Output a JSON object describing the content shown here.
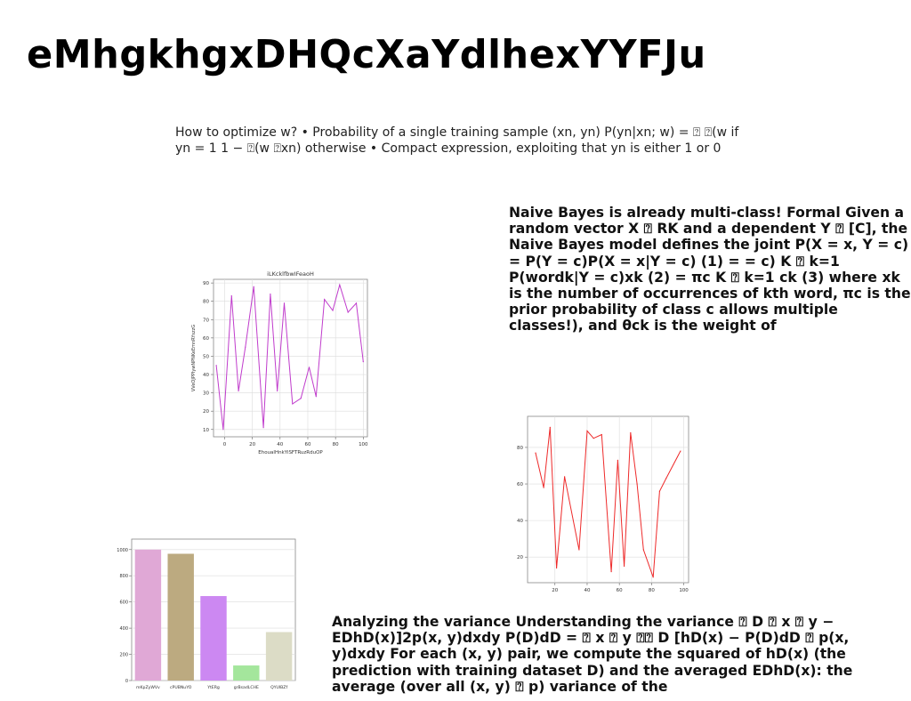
{
  "title": "eMhgkhgxDHQcXaYdlhexYYFJu",
  "para1": "How to optimize w? • Probability of a single training sample (xn, yn) P(yn|xn; w) = ⍰ ⍰(w if yn = 1 1 − ⍰(w ⍰xn) otherwise • Compact expression, exploiting that yn is either 1 or 0",
  "para2": "Naive Bayes is already multi-class! Formal Given a random vector X ⍰ RK and a dependent Y ⍰ [C], the Naive Bayes model defines the joint P(X = x, Y = c) = P(Y = c)P(X = x|Y = c) (1) = = c) K ⍰ k=1 P(wordk|Y = c)xk (2) = πc K ⍰ k=1 ck (3) where xk is the number of occurrences of kth word, πc is the prior probability of class c allows multiple classes!), and θck is the weight of",
  "para3": "Analyzing the variance Understanding the variance ⍰ D ⍰ x ⍰ y − EDhD(x)]2p(x, y)dxdy P(D)dD = ⍰ x ⍰ y ⍰⍰ D [hD(x) − P(D)dD ⍰ p(x, y)dxdy For each (x, y) pair, we compute the squared of hD(x) (the prediction with training dataset D) and the averaged EDhD(x): the average (over all (x, y) ⍰ p) variance of the",
  "chart_data": [
    {
      "type": "line",
      "title": "iLKcklfbwIFeaoH",
      "xlabel": "EhoualHnkYiSFTRuzRduOP",
      "ylabel": "VVeOJPPIywNPNKeEmnRYszzG",
      "color": "#c03ccc",
      "xlim": [
        -8,
        103
      ],
      "ylim": [
        6,
        92
      ],
      "xticks": [
        0,
        20,
        40,
        60,
        80,
        100
      ],
      "yticks": [
        10,
        20,
        30,
        40,
        50,
        60,
        70,
        80,
        90
      ],
      "grid": true,
      "x": [
        -6,
        -1,
        5,
        10,
        15,
        21,
        28,
        33,
        38,
        43,
        49,
        55,
        61,
        66,
        72,
        78,
        83,
        89,
        95,
        100
      ],
      "y": [
        45,
        10,
        83,
        31,
        55,
        88,
        11,
        84,
        31,
        79,
        24,
        27,
        44,
        28,
        81,
        75,
        89,
        74,
        79,
        47
      ]
    },
    {
      "type": "line",
      "title": "",
      "xlabel": "",
      "ylabel": "",
      "color": "#ee2a2a",
      "xlim": [
        3,
        103
      ],
      "ylim": [
        6,
        97
      ],
      "xticks": [
        20,
        40,
        60,
        80,
        100
      ],
      "yticks": [
        20,
        40,
        60,
        80
      ],
      "grid": true,
      "x": [
        8,
        13,
        17,
        21,
        26,
        35,
        40,
        44,
        49,
        55,
        59,
        63,
        67,
        71,
        75,
        81,
        85,
        89,
        98
      ],
      "y": [
        77,
        58,
        91,
        14,
        64,
        24,
        89,
        85,
        87,
        12,
        73,
        15,
        88,
        60,
        24,
        9,
        56,
        63,
        78
      ]
    },
    {
      "type": "bar",
      "title": "",
      "xlabel": "",
      "ylabel": "",
      "categories": [
        "mKpZyWVv",
        "cPUBNuYO",
        "YtERg",
        "grBsadLCHE",
        "QYUlBZf"
      ],
      "values": [
        1000,
        968,
        645,
        115,
        370
      ],
      "colors": [
        "#e0a8d6",
        "#bcaa80",
        "#cc88f2",
        "#a4e69c",
        "#dcdcc6"
      ],
      "ylim": [
        0,
        1080
      ],
      "yticks": [
        0,
        200,
        400,
        600,
        800,
        1000
      ],
      "grid": true
    }
  ]
}
